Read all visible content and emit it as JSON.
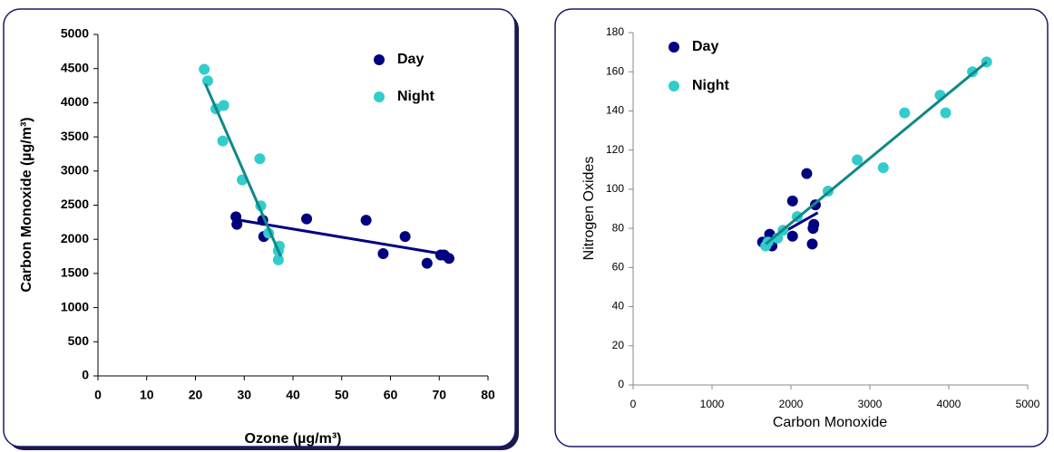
{
  "chart_data": [
    {
      "type": "scatter",
      "x_label": "Ozone (µg/m³)",
      "y_label": "Carbon Monoxide (µg/m³)",
      "xlim": [
        0,
        80
      ],
      "xticks": [
        0,
        10,
        20,
        30,
        40,
        50,
        60,
        70,
        80
      ],
      "ylim": [
        0,
        5000
      ],
      "yticks": [
        0,
        500,
        1000,
        1500,
        2000,
        2500,
        3000,
        3500,
        4000,
        4500,
        5000
      ],
      "legend": "upper right",
      "series": [
        {
          "name": "Day",
          "color": "#000080",
          "x": [
            28.3,
            28.5,
            33.8,
            34,
            42.8,
            55,
            58.5,
            63,
            67.5,
            70.3,
            71,
            72
          ],
          "values": [
            2330,
            2220,
            2280,
            2040,
            2300,
            2280,
            1790,
            2040,
            1650,
            1770,
            1770,
            1720
          ],
          "trendline": {
            "x": [
              28.3,
              72
            ],
            "values": [
              2290,
              1770
            ]
          }
        },
        {
          "name": "Night",
          "color": "#33CCCC",
          "x": [
            21.8,
            22.5,
            24.2,
            25.8,
            25.6,
            29.6,
            33.2,
            33.4,
            35,
            37.2,
            37,
            37
          ],
          "values": [
            4490,
            4320,
            3910,
            3960,
            3440,
            2870,
            3180,
            2490,
            2090,
            1900,
            1830,
            1700
          ],
          "trendline": {
            "x": [
              22,
              37.5
            ],
            "values": [
              4280,
              1750
            ]
          }
        }
      ]
    },
    {
      "type": "scatter",
      "x_label": "Carbon Monoxide",
      "y_label": "Nitrogen Oxides",
      "xlim": [
        0,
        5000
      ],
      "xticks": [
        0,
        1000,
        2000,
        3000,
        4000,
        5000
      ],
      "ylim": [
        0,
        180
      ],
      "yticks": [
        0,
        20,
        40,
        60,
        80,
        100,
        120,
        140,
        160,
        180
      ],
      "legend": "upper left",
      "series": [
        {
          "name": "Day",
          "color": "#000080",
          "x": [
            1640,
            1730,
            1760,
            2020,
            2020,
            2200,
            2270,
            2280,
            2290,
            2310
          ],
          "values": [
            73,
            77,
            71,
            76,
            94,
            108,
            72,
            80,
            82,
            92
          ],
          "trendline": {
            "x": [
              1640,
              2340
            ],
            "values": [
              72,
              88
            ]
          }
        },
        {
          "name": "Night",
          "color": "#33CCCC",
          "x": [
            1680,
            1710,
            1830,
            1900,
            2080,
            2470,
            2840,
            3170,
            3440,
            3890,
            3960,
            4300,
            4480
          ],
          "values": [
            71,
            73,
            75,
            79,
            86,
            99,
            115,
            111,
            139,
            148,
            139,
            160,
            165
          ],
          "trendline": {
            "x": [
              1680,
              4480
            ],
            "values": [
              72,
              165
            ]
          }
        }
      ]
    }
  ]
}
